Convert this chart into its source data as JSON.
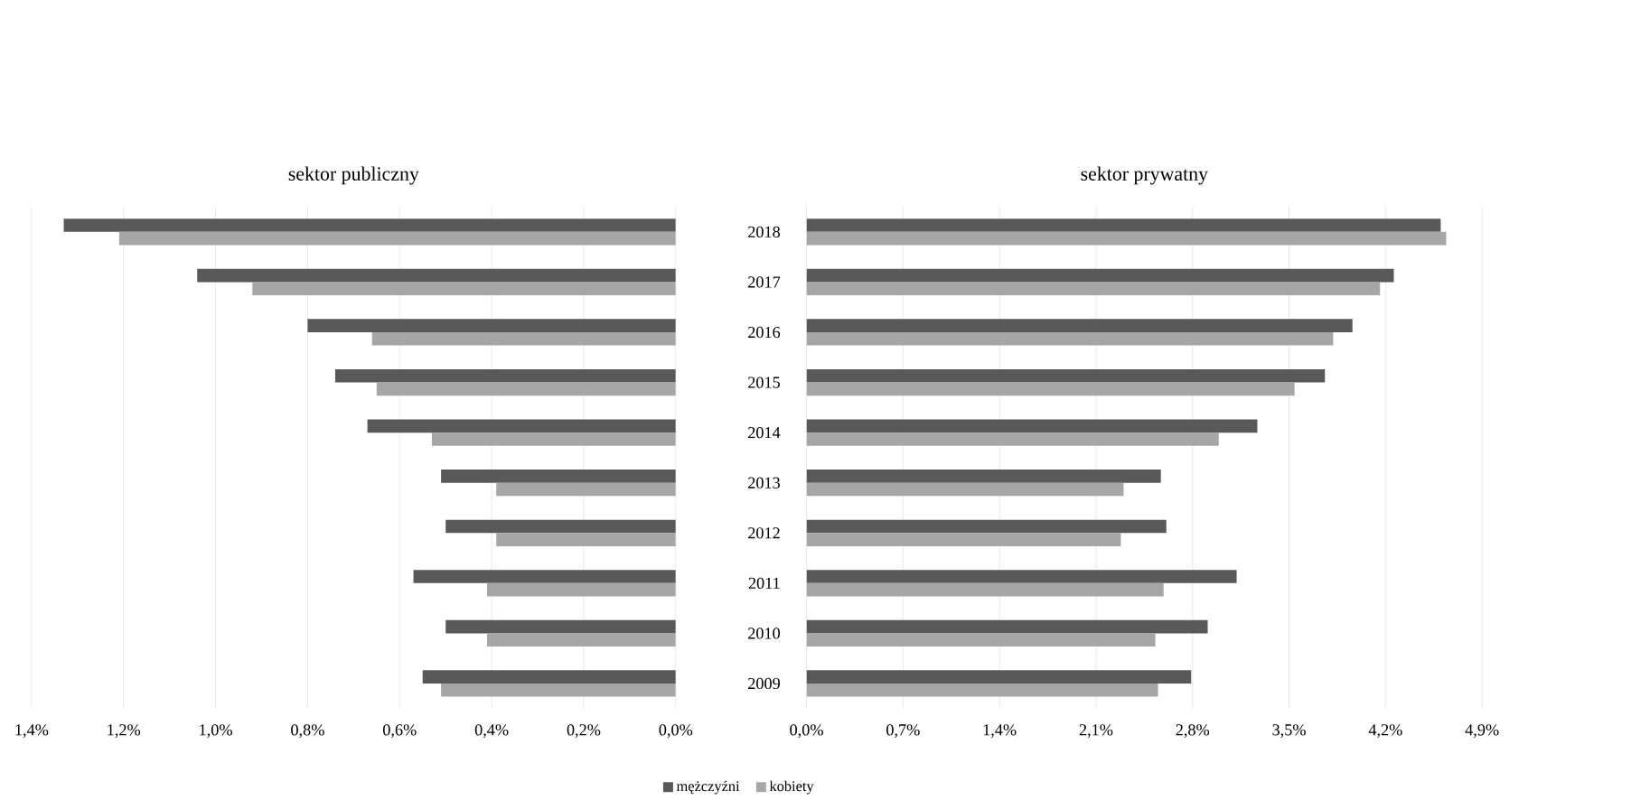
{
  "chart_data": [
    {
      "type": "bar",
      "orientation": "horizontal",
      "title": "sektor publiczny",
      "categories": [
        "2018",
        "2017",
        "2016",
        "2015",
        "2014",
        "2013",
        "2012",
        "2011",
        "2010",
        "2009"
      ],
      "series": [
        {
          "name": "mężczyźni",
          "color": "#595959",
          "values": [
            1.33,
            1.04,
            0.8,
            0.74,
            0.67,
            0.51,
            0.5,
            0.57,
            0.5,
            0.55
          ]
        },
        {
          "name": "kobiety",
          "color": "#a6a6a6",
          "values": [
            1.21,
            0.92,
            0.66,
            0.65,
            0.53,
            0.39,
            0.39,
            0.41,
            0.41,
            0.51
          ]
        }
      ],
      "xlim": [
        1.4,
        0
      ],
      "xticks": [
        {
          "value": 1.4,
          "label": "1,4%"
        },
        {
          "value": 1.2,
          "label": "1,2%"
        },
        {
          "value": 1.0,
          "label": "1,0%"
        },
        {
          "value": 0.8,
          "label": "0,8%"
        },
        {
          "value": 0.6,
          "label": "0,6%"
        },
        {
          "value": 0.4,
          "label": "0,4%"
        },
        {
          "value": 0.2,
          "label": "0,2%"
        },
        {
          "value": 0,
          "label": "0,0%"
        }
      ],
      "grid": "x",
      "legend": "bottom",
      "tick_labels": "x"
    },
    {
      "type": "bar",
      "orientation": "horizontal",
      "title": "sektor prywatny",
      "categories": [
        "2018",
        "2017",
        "2016",
        "2015",
        "2014",
        "2013",
        "2012",
        "2011",
        "2010",
        "2009"
      ],
      "series": [
        {
          "color": "#595959",
          "values": [
            4.6,
            4.26,
            3.96,
            3.76,
            3.27,
            2.57,
            2.61,
            3.12,
            2.91,
            2.79
          ]
        },
        {
          "color": "#a6a6a6",
          "values": [
            4.64,
            4.16,
            3.82,
            3.54,
            2.99,
            2.3,
            2.28,
            2.59,
            2.53,
            2.55
          ]
        }
      ],
      "xlim": [
        0,
        4.9
      ],
      "xticks": [
        {
          "value": 0,
          "label": "0,0%"
        },
        {
          "value": 0.7,
          "label": "0,7%"
        },
        {
          "value": 1.4,
          "label": "1,4%"
        },
        {
          "value": 2.1,
          "label": "2,1%"
        },
        {
          "value": 2.8,
          "label": "2,8%"
        },
        {
          "value": 3.5,
          "label": "3,5%"
        },
        {
          "value": 4.2,
          "label": "4,2%"
        },
        {
          "value": 4.9,
          "label": "4,9%"
        }
      ],
      "grid": "x"
    }
  ]
}
